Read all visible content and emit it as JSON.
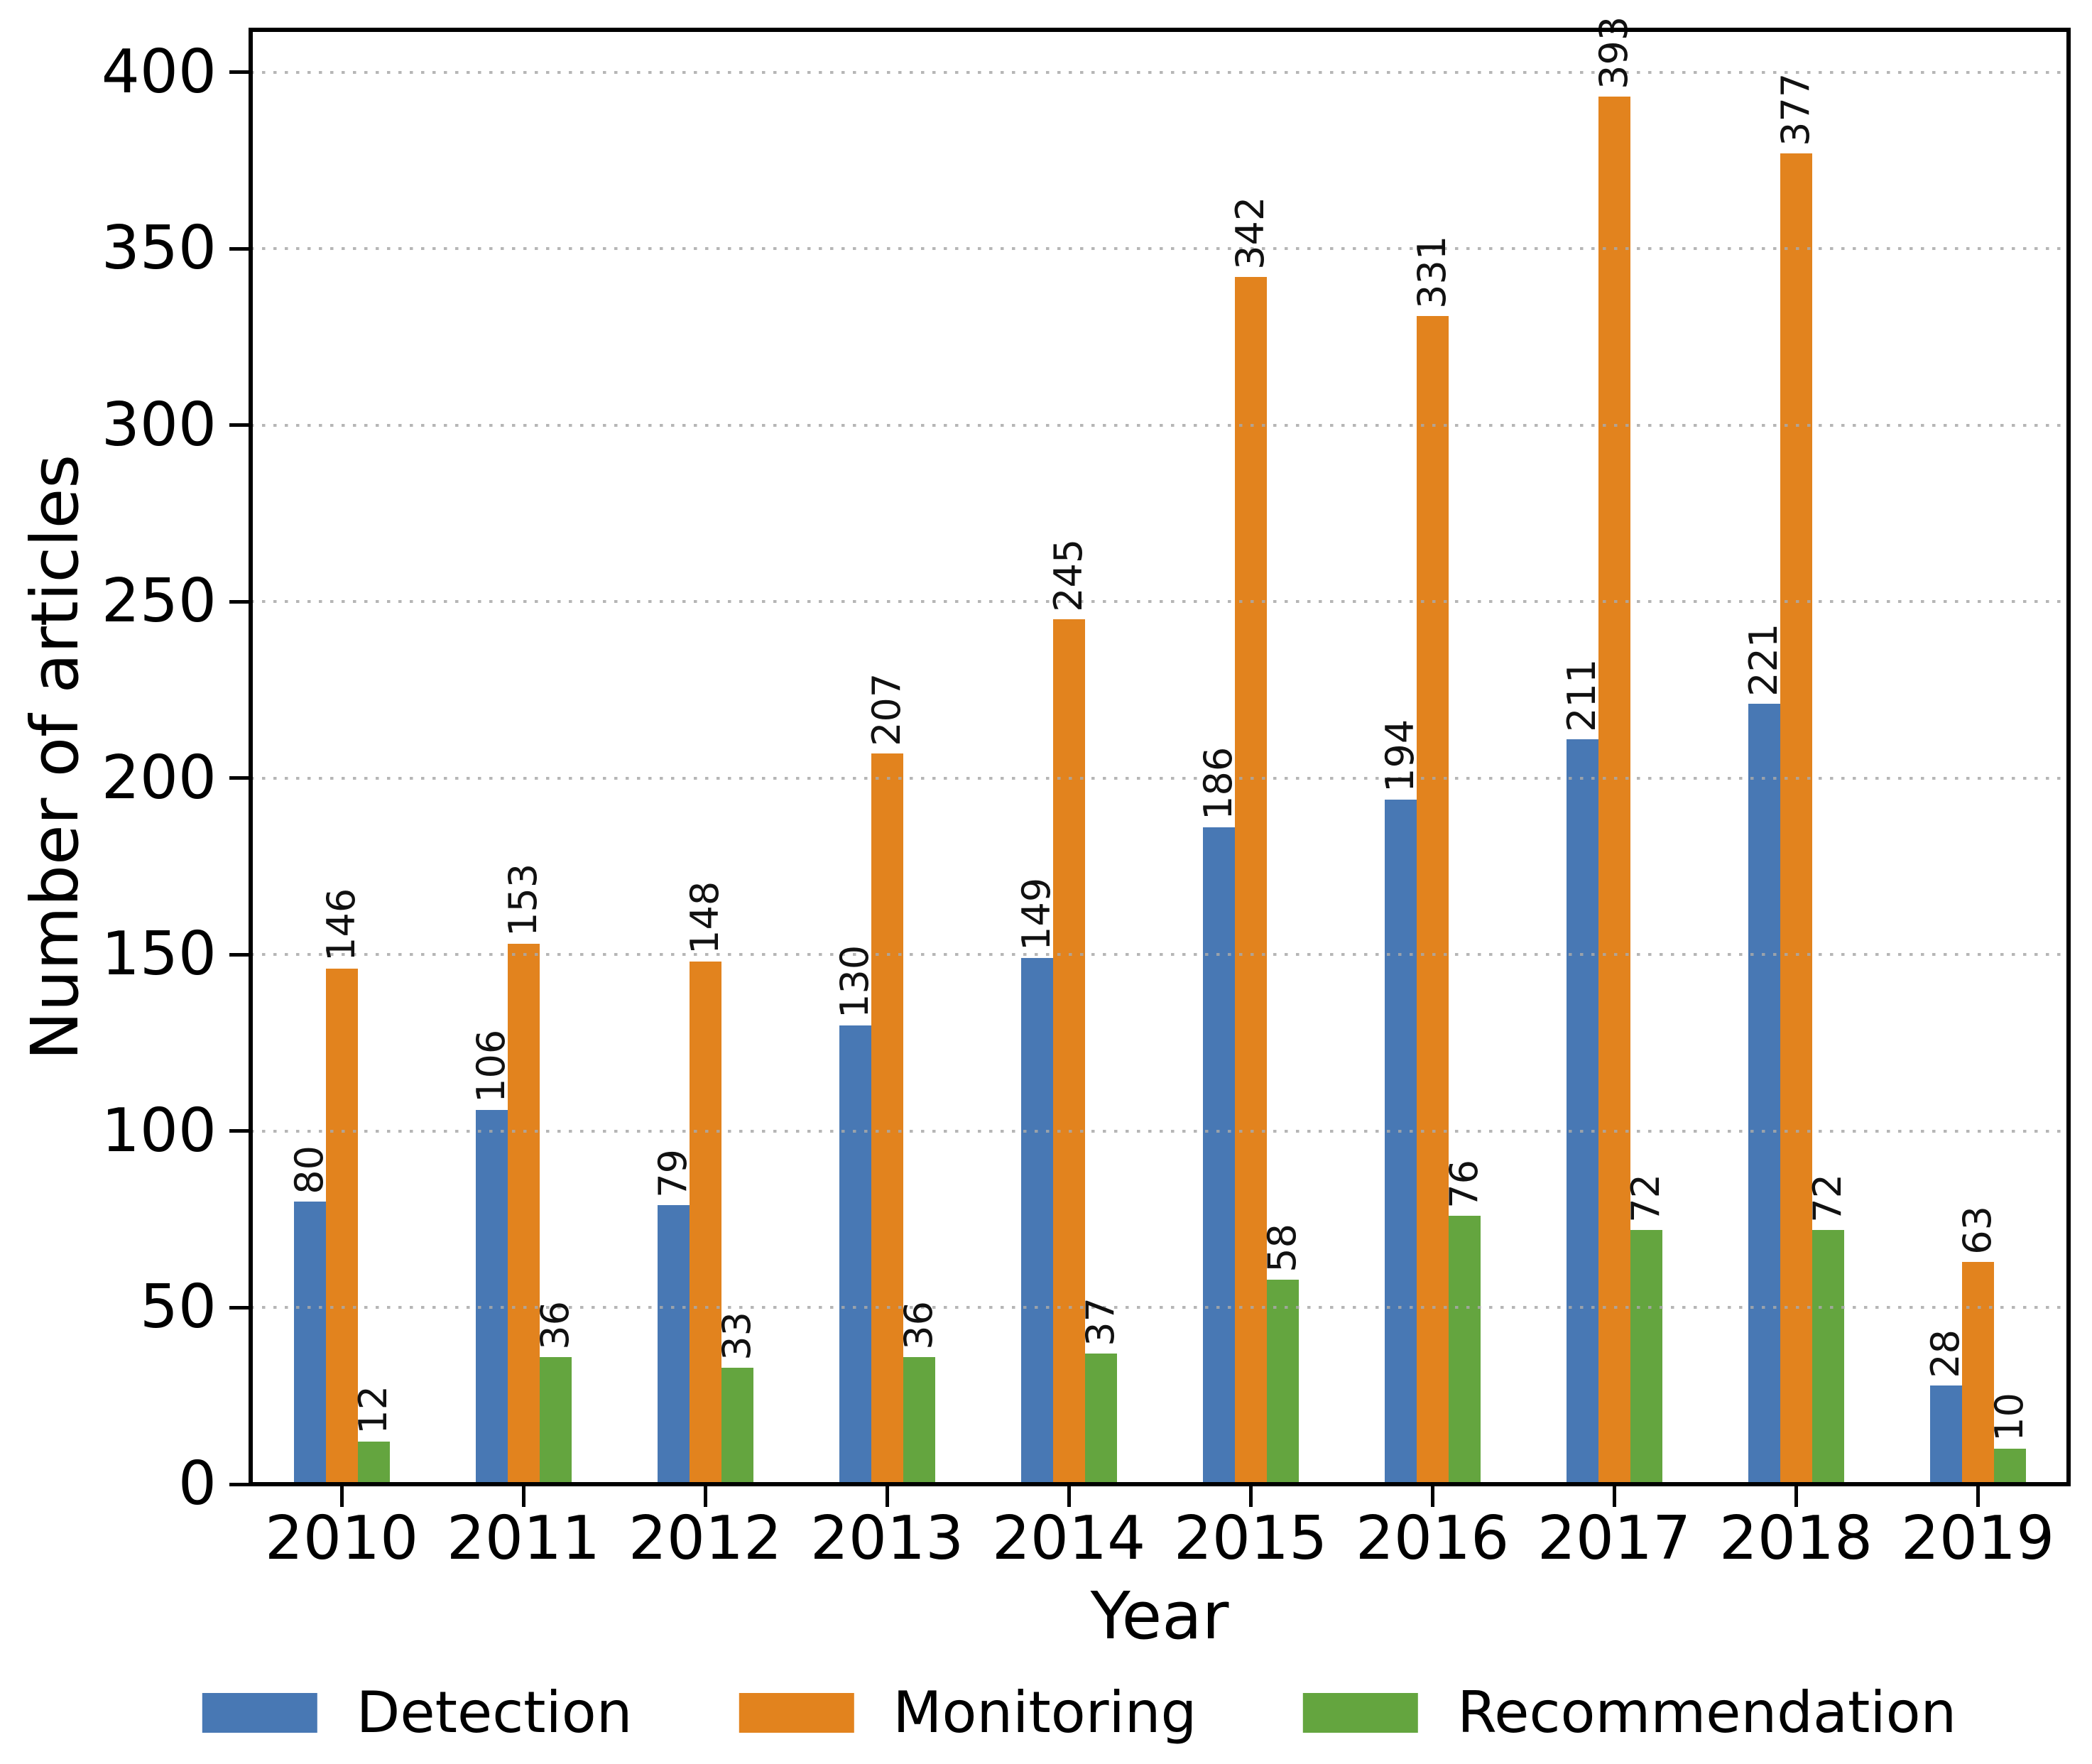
{
  "figure": {
    "background": "#ffffff"
  },
  "chart_data": {
    "type": "bar",
    "title": "",
    "xlabel": "Year",
    "ylabel": "Number of articles",
    "categories": [
      "2010",
      "2011",
      "2012",
      "2013",
      "2014",
      "2015",
      "2016",
      "2017",
      "2018",
      "2019"
    ],
    "series": [
      {
        "name": "Detection",
        "color": "#4878b4",
        "values": [
          80,
          106,
          79,
          130,
          149,
          186,
          194,
          211,
          221,
          28
        ]
      },
      {
        "name": "Monitoring",
        "color": "#e2831e",
        "values": [
          146,
          153,
          148,
          207,
          245,
          342,
          331,
          393,
          377,
          63
        ]
      },
      {
        "name": "Recommendation",
        "color": "#64a53f",
        "values": [
          12,
          36,
          33,
          36,
          37,
          58,
          76,
          72,
          72,
          10
        ]
      }
    ],
    "yticks": [
      0,
      50,
      100,
      150,
      200,
      250,
      300,
      350,
      400
    ],
    "ylim": [
      0,
      412
    ],
    "grid": "dotted-horizontal-gray",
    "gridline_color": "#a9a9a9",
    "bar_value_labels_rotation_deg": 90,
    "legend_position": "bottom"
  }
}
